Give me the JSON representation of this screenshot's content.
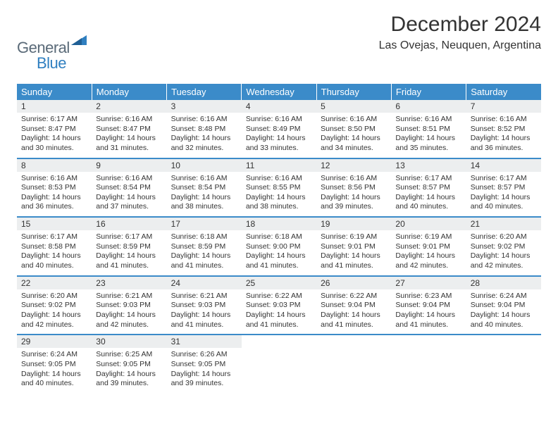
{
  "logo": {
    "word1": "General",
    "word2": "Blue"
  },
  "title": "December 2024",
  "location": "Las Ovejas, Neuquen, Argentina",
  "colors": {
    "header_blue": "#3b8bc9",
    "daynum_bg": "#eceeef",
    "text": "#333333",
    "logo_gray": "#5a6a78",
    "logo_blue": "#2f7fc0"
  },
  "daysOfWeek": [
    "Sunday",
    "Monday",
    "Tuesday",
    "Wednesday",
    "Thursday",
    "Friday",
    "Saturday"
  ],
  "weeks": [
    [
      {
        "n": "1",
        "sr": "6:17 AM",
        "ss": "8:47 PM",
        "dl": "14 hours and 30 minutes."
      },
      {
        "n": "2",
        "sr": "6:16 AM",
        "ss": "8:47 PM",
        "dl": "14 hours and 31 minutes."
      },
      {
        "n": "3",
        "sr": "6:16 AM",
        "ss": "8:48 PM",
        "dl": "14 hours and 32 minutes."
      },
      {
        "n": "4",
        "sr": "6:16 AM",
        "ss": "8:49 PM",
        "dl": "14 hours and 33 minutes."
      },
      {
        "n": "5",
        "sr": "6:16 AM",
        "ss": "8:50 PM",
        "dl": "14 hours and 34 minutes."
      },
      {
        "n": "6",
        "sr": "6:16 AM",
        "ss": "8:51 PM",
        "dl": "14 hours and 35 minutes."
      },
      {
        "n": "7",
        "sr": "6:16 AM",
        "ss": "8:52 PM",
        "dl": "14 hours and 36 minutes."
      }
    ],
    [
      {
        "n": "8",
        "sr": "6:16 AM",
        "ss": "8:53 PM",
        "dl": "14 hours and 36 minutes."
      },
      {
        "n": "9",
        "sr": "6:16 AM",
        "ss": "8:54 PM",
        "dl": "14 hours and 37 minutes."
      },
      {
        "n": "10",
        "sr": "6:16 AM",
        "ss": "8:54 PM",
        "dl": "14 hours and 38 minutes."
      },
      {
        "n": "11",
        "sr": "6:16 AM",
        "ss": "8:55 PM",
        "dl": "14 hours and 38 minutes."
      },
      {
        "n": "12",
        "sr": "6:16 AM",
        "ss": "8:56 PM",
        "dl": "14 hours and 39 minutes."
      },
      {
        "n": "13",
        "sr": "6:17 AM",
        "ss": "8:57 PM",
        "dl": "14 hours and 40 minutes."
      },
      {
        "n": "14",
        "sr": "6:17 AM",
        "ss": "8:57 PM",
        "dl": "14 hours and 40 minutes."
      }
    ],
    [
      {
        "n": "15",
        "sr": "6:17 AM",
        "ss": "8:58 PM",
        "dl": "14 hours and 40 minutes."
      },
      {
        "n": "16",
        "sr": "6:17 AM",
        "ss": "8:59 PM",
        "dl": "14 hours and 41 minutes."
      },
      {
        "n": "17",
        "sr": "6:18 AM",
        "ss": "8:59 PM",
        "dl": "14 hours and 41 minutes."
      },
      {
        "n": "18",
        "sr": "6:18 AM",
        "ss": "9:00 PM",
        "dl": "14 hours and 41 minutes."
      },
      {
        "n": "19",
        "sr": "6:19 AM",
        "ss": "9:01 PM",
        "dl": "14 hours and 41 minutes."
      },
      {
        "n": "20",
        "sr": "6:19 AM",
        "ss": "9:01 PM",
        "dl": "14 hours and 42 minutes."
      },
      {
        "n": "21",
        "sr": "6:20 AM",
        "ss": "9:02 PM",
        "dl": "14 hours and 42 minutes."
      }
    ],
    [
      {
        "n": "22",
        "sr": "6:20 AM",
        "ss": "9:02 PM",
        "dl": "14 hours and 42 minutes."
      },
      {
        "n": "23",
        "sr": "6:21 AM",
        "ss": "9:03 PM",
        "dl": "14 hours and 42 minutes."
      },
      {
        "n": "24",
        "sr": "6:21 AM",
        "ss": "9:03 PM",
        "dl": "14 hours and 41 minutes."
      },
      {
        "n": "25",
        "sr": "6:22 AM",
        "ss": "9:03 PM",
        "dl": "14 hours and 41 minutes."
      },
      {
        "n": "26",
        "sr": "6:22 AM",
        "ss": "9:04 PM",
        "dl": "14 hours and 41 minutes."
      },
      {
        "n": "27",
        "sr": "6:23 AM",
        "ss": "9:04 PM",
        "dl": "14 hours and 41 minutes."
      },
      {
        "n": "28",
        "sr": "6:24 AM",
        "ss": "9:04 PM",
        "dl": "14 hours and 40 minutes."
      }
    ],
    [
      {
        "n": "29",
        "sr": "6:24 AM",
        "ss": "9:05 PM",
        "dl": "14 hours and 40 minutes."
      },
      {
        "n": "30",
        "sr": "6:25 AM",
        "ss": "9:05 PM",
        "dl": "14 hours and 39 minutes."
      },
      {
        "n": "31",
        "sr": "6:26 AM",
        "ss": "9:05 PM",
        "dl": "14 hours and 39 minutes."
      },
      null,
      null,
      null,
      null
    ]
  ],
  "labels": {
    "sunrise": "Sunrise:",
    "sunset": "Sunset:",
    "daylight": "Daylight:"
  }
}
